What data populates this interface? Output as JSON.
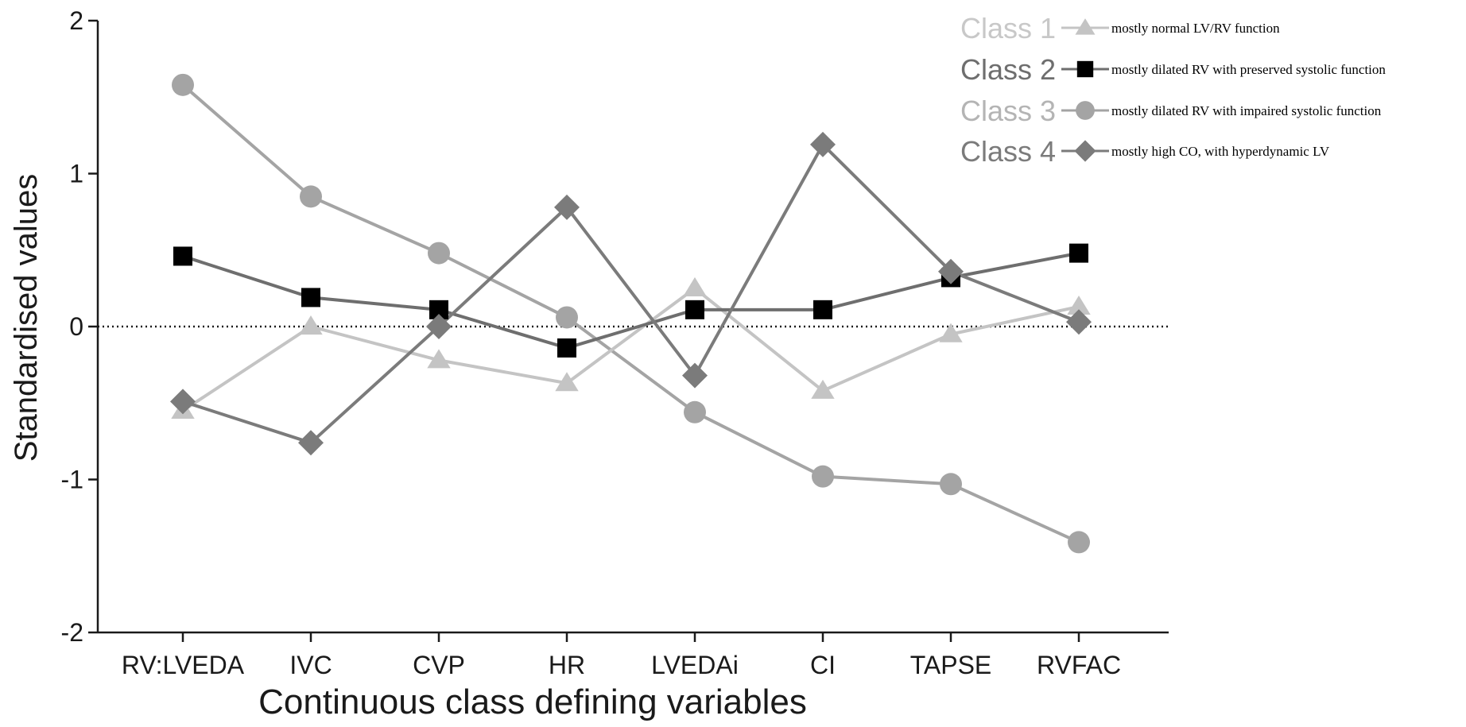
{
  "chart_data": {
    "type": "line",
    "title": "",
    "xlabel": "Continuous class defining variables",
    "ylabel": "Standardised values",
    "ylim": [
      -2,
      2
    ],
    "yticks": [
      -2,
      -1,
      0,
      1,
      2
    ],
    "ytick_labels": [
      "-2",
      "-1",
      "0",
      "1",
      "2"
    ],
    "reference_line": 0,
    "grid": false,
    "legend_position": "top-right",
    "categories": [
      "RV:LVEDA",
      "IVC",
      "CVP",
      "HR",
      "LVEDAi",
      "CI",
      "TAPSE",
      "RVFAC"
    ],
    "series": [
      {
        "name": "Class 1",
        "description": "mostly normal LV/RV function",
        "marker": "triangle",
        "color": "#c4c4c4",
        "values": [
          -0.55,
          0.0,
          -0.22,
          -0.37,
          0.25,
          -0.42,
          -0.05,
          0.13
        ]
      },
      {
        "name": "Class 2",
        "description": "mostly dilated RV with preserved systolic function",
        "marker": "square",
        "color": "#000000",
        "line_color": "#6e6e6e",
        "values": [
          0.46,
          0.19,
          0.11,
          -0.14,
          0.11,
          0.11,
          0.32,
          0.48
        ]
      },
      {
        "name": "Class 3",
        "description": "mostly dilated RV with impaired systolic function",
        "marker": "circle",
        "color": "#a4a4a4",
        "values": [
          1.58,
          0.85,
          0.48,
          0.06,
          -0.56,
          -0.98,
          -1.03,
          -1.41
        ]
      },
      {
        "name": "Class 4",
        "description": "mostly high CO, with hyperdynamic LV",
        "marker": "diamond",
        "color": "#7b7b7b",
        "values": [
          -0.49,
          -0.76,
          0.0,
          0.78,
          -0.32,
          1.19,
          0.36,
          0.03
        ]
      }
    ]
  }
}
